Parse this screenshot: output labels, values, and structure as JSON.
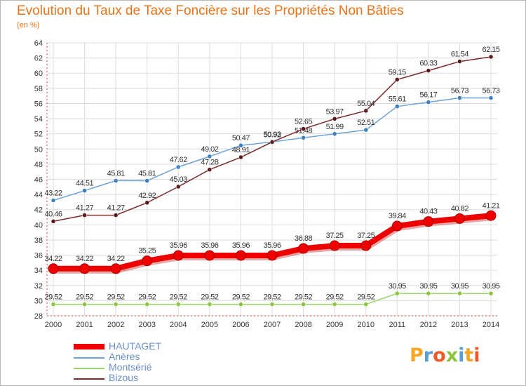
{
  "title": "Evolution du Taux de Taxe Foncière sur les Propriétés Non Bâties",
  "subtitle": "(en %)",
  "logo_text": "Proxiti",
  "logo_colors": [
    "#f6a623",
    "#5a9ed6",
    "#f05a28",
    "#8cc63e",
    "#5a9ed6",
    "#f6a623",
    "#f05a28"
  ],
  "chart_data": {
    "type": "line",
    "x": [
      "2000",
      "2001",
      "2002",
      "2003",
      "2004",
      "2005",
      "2006",
      "2007",
      "2008",
      "2009",
      "2010",
      "2011",
      "2012",
      "2013",
      "2014"
    ],
    "ylim": [
      28,
      64
    ],
    "yticks": [
      28,
      30,
      32,
      34,
      36,
      38,
      40,
      42,
      44,
      46,
      48,
      50,
      52,
      54,
      56,
      58,
      60,
      62,
      64
    ],
    "grid": true,
    "legend_position": "bottom-left",
    "series": [
      {
        "name": "HAUTAGET",
        "color": "#ee0000",
        "values": [
          34.22,
          34.22,
          34.22,
          35.25,
          35.96,
          35.96,
          35.96,
          35.96,
          36.88,
          37.25,
          37.25,
          39.84,
          40.43,
          40.82,
          41.21
        ],
        "labels": [
          "34.22",
          "34.22",
          "34.22",
          "35.25",
          "35.96",
          "35.96",
          "35.96",
          "35.96",
          "36.88",
          "37.25",
          "37.25",
          "39.84",
          "40.43",
          "40.82",
          "41.21"
        ]
      },
      {
        "name": "Anères",
        "color": "#6fa3d8",
        "values": [
          43.22,
          44.51,
          45.81,
          45.81,
          47.62,
          49.02,
          50.47,
          50.93,
          51.48,
          51.99,
          52.51,
          55.61,
          56.17,
          56.73,
          56.73
        ],
        "labels": [
          "43.22",
          "44.51",
          "45.81",
          "45.81",
          "47.62",
          "49.02",
          "50.47",
          "50.93",
          "51.48",
          "51.99",
          "52.51",
          "55.61",
          "56.17",
          "56.73",
          "56.73"
        ]
      },
      {
        "name": "Montsérié",
        "color": "#9ad46a",
        "values": [
          29.52,
          29.52,
          29.52,
          29.52,
          29.52,
          29.52,
          29.52,
          29.52,
          29.52,
          29.52,
          29.52,
          30.95,
          30.95,
          30.95,
          30.95
        ],
        "labels": [
          "29.52",
          "29.52",
          "29.52",
          "29.52",
          "29.52",
          "29.52",
          "29.52",
          "29.52",
          "29.52",
          "29.52",
          "29.52",
          "30.95",
          "30.95",
          "30.95",
          "30.95"
        ]
      },
      {
        "name": "Bizous",
        "color": "#7a2a2a",
        "values": [
          40.46,
          41.27,
          41.27,
          42.92,
          45.03,
          47.28,
          48.91,
          50.92,
          52.65,
          53.97,
          55.04,
          59.15,
          60.33,
          61.54,
          62.15
        ],
        "labels": [
          "40.46",
          "41.27",
          "41.27",
          "42.92",
          "45.03",
          "47.28",
          "48.91",
          "50.92",
          "52.65",
          "53.97",
          "55.04",
          "59.15",
          "60.33",
          "61.54",
          "62.15"
        ]
      }
    ]
  }
}
